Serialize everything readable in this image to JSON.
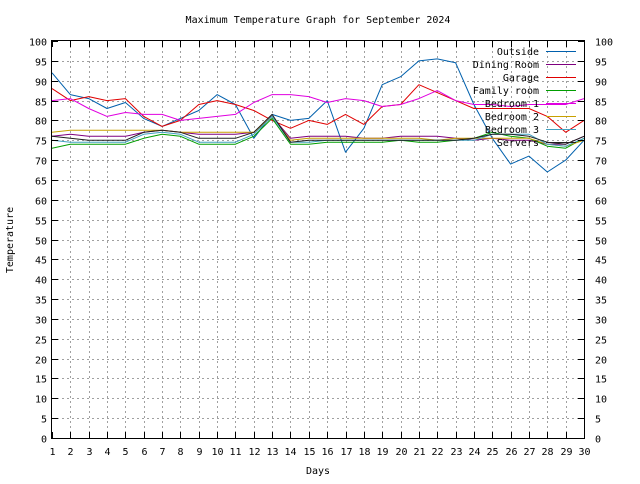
{
  "chart_data": {
    "type": "line",
    "title": "Maximum Temperature Graph for September 2024",
    "xlabel": "Days",
    "ylabel": "Temperature",
    "xlim": [
      1,
      30
    ],
    "ylim": [
      0,
      100
    ],
    "grid": true,
    "legend_position": "top-right",
    "x": [
      1,
      2,
      3,
      4,
      5,
      6,
      7,
      8,
      9,
      10,
      11,
      12,
      13,
      14,
      15,
      16,
      17,
      18,
      19,
      20,
      21,
      22,
      23,
      24,
      25,
      26,
      27,
      28,
      29,
      30
    ],
    "xticks": [
      "1",
      "2",
      "3",
      "4",
      "5",
      "6",
      "7",
      "8",
      "9",
      "10",
      "11",
      "12",
      "13",
      "14",
      "15",
      "16",
      "17",
      "18",
      "19",
      "20",
      "21",
      "22",
      "23",
      "24",
      "25",
      "26",
      "27",
      "28",
      "29",
      "30"
    ],
    "yticks": [
      "0",
      "5",
      "10",
      "15",
      "20",
      "25",
      "30",
      "35",
      "40",
      "45",
      "50",
      "55",
      "60",
      "65",
      "70",
      "75",
      "80",
      "85",
      "90",
      "95",
      "100"
    ],
    "series": [
      {
        "name": "Outside",
        "color": "#0060ad",
        "values": [
          92,
          86.5,
          85.5,
          83,
          84.5,
          80.5,
          78.5,
          80.5,
          82.5,
          86.5,
          84,
          75.5,
          81.5,
          80,
          80.5,
          85,
          72,
          78,
          89,
          91,
          95,
          95.5,
          94.5,
          84,
          75.5,
          69,
          71,
          67,
          70,
          75
        ]
      },
      {
        "name": "Dining Room",
        "color": "#7f007f",
        "values": [
          76,
          76.5,
          76,
          76,
          76,
          77,
          77.5,
          77,
          76.5,
          76.5,
          76.5,
          77,
          81,
          75.5,
          76,
          76,
          76,
          75.5,
          75.5,
          76,
          76,
          76,
          75.5,
          75,
          75.5,
          75,
          75,
          74,
          74,
          76
        ]
      },
      {
        "name": "Garage",
        "color": "#e00000",
        "values": [
          88,
          85,
          86,
          85,
          85.5,
          81,
          78.5,
          80,
          84,
          85,
          84,
          82.5,
          80,
          78,
          80,
          79,
          81.5,
          79,
          83.5,
          84,
          89,
          87,
          85,
          83,
          83,
          83,
          83,
          81,
          77,
          80
        ]
      },
      {
        "name": "Family room",
        "color": "#009e00",
        "values": [
          73,
          74,
          74,
          74,
          74,
          75.5,
          76.5,
          76,
          74,
          74,
          74,
          76,
          80.5,
          74,
          74,
          74.5,
          74.5,
          74.5,
          74.5,
          75,
          74.5,
          74.5,
          75,
          75.5,
          77,
          76,
          75.5,
          73.5,
          73,
          75.5
        ]
      },
      {
        "name": "Bedroom 1",
        "color": "#e000e0",
        "values": [
          85,
          85.5,
          83,
          81,
          82,
          81.5,
          81.5,
          80,
          80.5,
          81,
          81.5,
          84.5,
          86.5,
          86.5,
          86,
          84.5,
          85.5,
          85,
          83.5,
          84,
          85.5,
          87.5,
          85,
          84,
          84,
          83.5,
          84,
          84,
          84,
          85.5
        ]
      },
      {
        "name": "Bedroom 2",
        "color": "#c8a000",
        "values": [
          77,
          77.5,
          77.5,
          77.5,
          77.5,
          77.5,
          77.5,
          77,
          77,
          77,
          77,
          77,
          81,
          75,
          75.5,
          75.5,
          75.5,
          75.5,
          75.5,
          75.5,
          75.5,
          75,
          75.5,
          75.5,
          75.5,
          75.5,
          75.5,
          74,
          73.5,
          75
        ]
      },
      {
        "name": "Bedroom 3",
        "color": "#40a0c0",
        "values": [
          75,
          74.5,
          74.5,
          74.5,
          74.5,
          76.5,
          77,
          76.5,
          74.5,
          74.5,
          74.5,
          76.5,
          81,
          74.5,
          74.5,
          75,
          75,
          75,
          75,
          75,
          75,
          75,
          75,
          75,
          76.5,
          76.5,
          76.5,
          74,
          73.5,
          75.5
        ]
      },
      {
        "name": "Servers",
        "color": "#202020",
        "values": [
          76,
          75.5,
          75,
          75,
          75,
          77,
          77.5,
          77,
          75.5,
          75.5,
          75.5,
          77,
          81.5,
          74.5,
          75,
          75,
          75,
          75,
          75,
          75,
          75,
          75,
          75,
          75.5,
          76.5,
          76.5,
          76,
          74.5,
          74,
          76
        ]
      }
    ]
  }
}
